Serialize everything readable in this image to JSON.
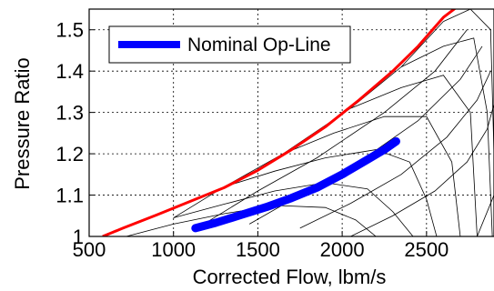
{
  "chart_data": {
    "type": "line",
    "title": "",
    "xlabel": "Corrected Flow, lbm/s",
    "ylabel": "Pressure Ratio",
    "xlim": [
      500,
      2900
    ],
    "ylim": [
      1.0,
      1.55
    ],
    "xticks": [
      500,
      1000,
      1500,
      2000,
      2500
    ],
    "yticks": [
      1,
      1.1,
      1.2,
      1.3,
      1.4,
      1.5
    ],
    "xtick_labels": [
      "500",
      "1000",
      "1500",
      "2000",
      "2500"
    ],
    "ytick_labels": [
      "1",
      "1.1",
      "1.2",
      "1.3",
      "1.4",
      "1.5"
    ],
    "grid": true,
    "legend_position": "top-left",
    "series": [
      {
        "name": "Nominal Op-Line",
        "color": "#0000ff",
        "style": "thick-line",
        "x": [
          1130,
          1250,
          1400,
          1550,
          1700,
          1850,
          2000,
          2150,
          2250,
          2320
        ],
        "y": [
          1.02,
          1.033,
          1.052,
          1.071,
          1.093,
          1.118,
          1.15,
          1.186,
          1.21,
          1.23
        ]
      },
      {
        "color": "#ff0000",
        "style": "line",
        "x": [
          580,
          700,
          900,
          1100,
          1300,
          1500,
          1700,
          1900,
          2100,
          2300,
          2450,
          2600,
          2680
        ],
        "y": [
          1.0,
          1.02,
          1.052,
          1.085,
          1.118,
          1.16,
          1.21,
          1.265,
          1.33,
          1.4,
          1.46,
          1.53,
          1.555
        ]
      }
    ],
    "map_grid": {
      "color": "#000000",
      "speed_lines": [
        {
          "x": [
            720,
            1000,
            1300,
            1600,
            1900,
            2080,
            2200
          ],
          "y": [
            1.0,
            1.03,
            1.055,
            1.075,
            1.07,
            1.04,
            1.0
          ]
        },
        {
          "x": [
            1000,
            1300,
            1600,
            1900,
            2150,
            2300,
            2420
          ],
          "y": [
            1.045,
            1.078,
            1.11,
            1.13,
            1.115,
            1.06,
            1.0
          ]
        },
        {
          "x": [
            1300,
            1600,
            1900,
            2200,
            2400,
            2500,
            2560
          ],
          "y": [
            1.12,
            1.158,
            1.19,
            1.21,
            1.18,
            1.09,
            1.0
          ]
        },
        {
          "x": [
            1650,
            1950,
            2250,
            2500,
            2650,
            2700
          ],
          "y": [
            1.2,
            1.25,
            1.29,
            1.29,
            1.18,
            1.0
          ]
        },
        {
          "x": [
            2050,
            2350,
            2600,
            2760,
            2800
          ],
          "y": [
            1.31,
            1.36,
            1.39,
            1.3,
            1.0
          ]
        },
        {
          "x": [
            2350,
            2600,
            2780,
            2860,
            2890
          ],
          "y": [
            1.41,
            1.46,
            1.48,
            1.3,
            1.0
          ]
        },
        {
          "x": [
            2600,
            2760,
            2880,
            2900
          ],
          "y": [
            1.52,
            1.55,
            1.5,
            1.2
          ]
        }
      ],
      "beta_lines": [
        {
          "x": [
            1000,
            1300,
            1650,
            2050,
            2350,
            2600
          ],
          "y": [
            1.045,
            1.12,
            1.2,
            1.31,
            1.41,
            1.52
          ]
        },
        {
          "x": [
            1200,
            1500,
            1850,
            2250,
            2550,
            2740
          ],
          "y": [
            1.035,
            1.11,
            1.19,
            1.3,
            1.4,
            1.5
          ]
        },
        {
          "x": [
            1450,
            1750,
            2100,
            2450,
            2700,
            2830
          ],
          "y": [
            1.03,
            1.1,
            1.18,
            1.28,
            1.38,
            1.46
          ]
        },
        {
          "x": [
            1750,
            2050,
            2350,
            2620,
            2800,
            2880
          ],
          "y": [
            1.02,
            1.08,
            1.15,
            1.24,
            1.33,
            1.4
          ]
        },
        {
          "x": [
            2050,
            2300,
            2550,
            2740,
            2860,
            2900
          ],
          "y": [
            1.0,
            1.05,
            1.11,
            1.18,
            1.26,
            1.32
          ]
        },
        {
          "x": [
            2200,
            2420,
            2560,
            2700,
            2800,
            2900
          ],
          "y": [
            1.0,
            1.0,
            1.0,
            1.0,
            1.0,
            1.1
          ]
        }
      ]
    }
  }
}
